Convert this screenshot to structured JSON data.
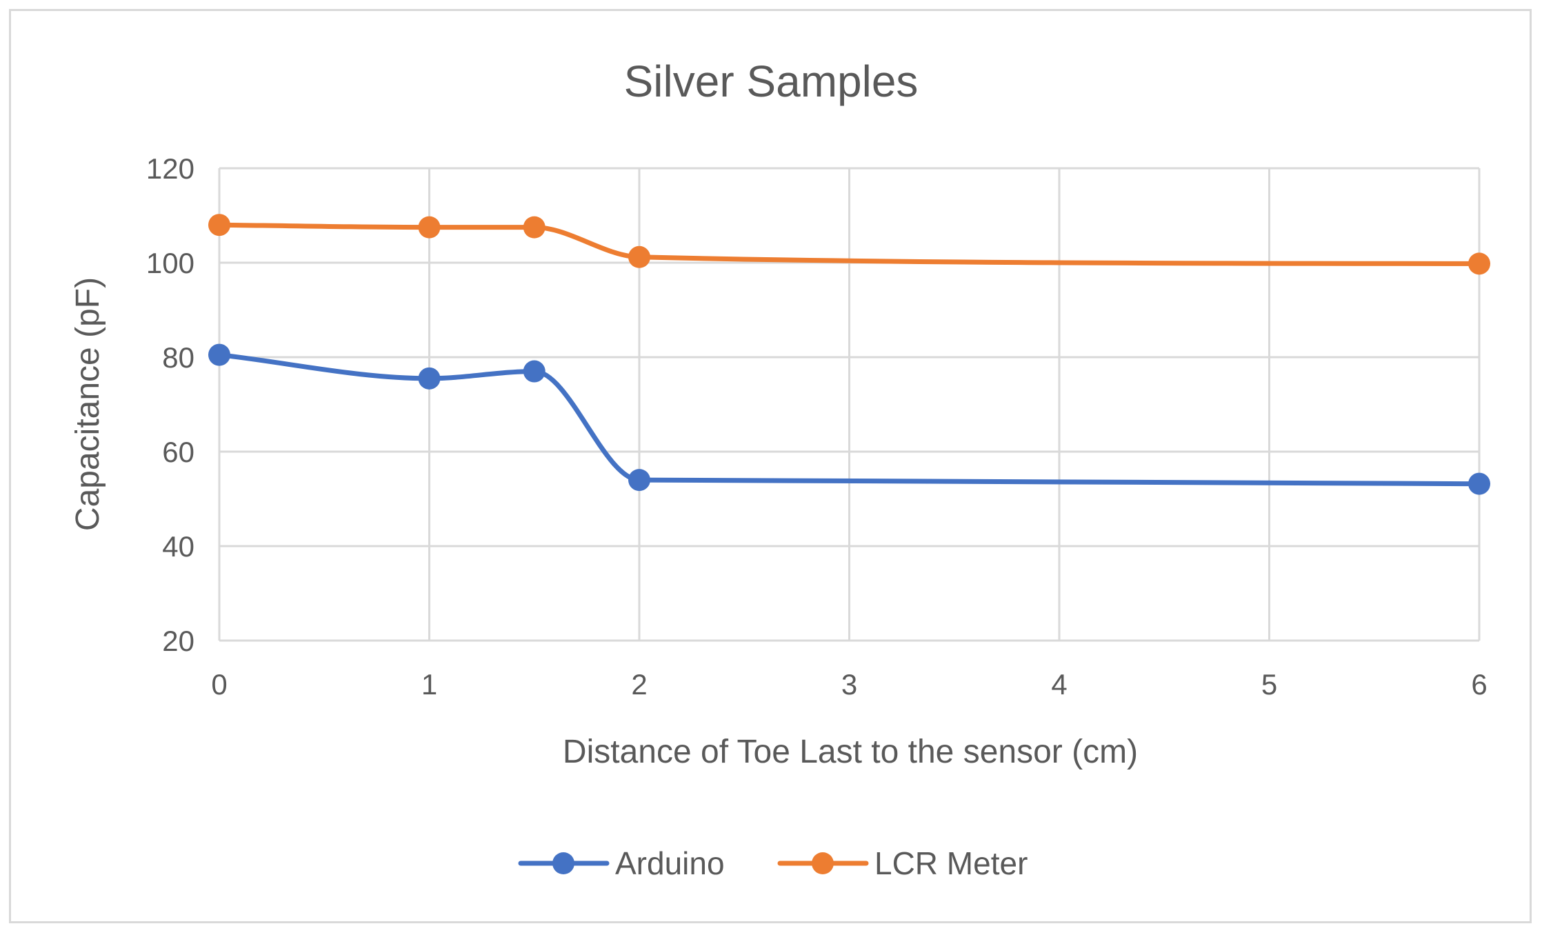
{
  "chart_data": {
    "type": "line",
    "title": "Silver Samples",
    "xlabel": "Distance of Toe Last to the sensor (cm)",
    "ylabel": "Capacitance (pF)",
    "xlim": [
      0,
      6
    ],
    "ylim": [
      20,
      120
    ],
    "x_ticks": [
      "0",
      "1",
      "2",
      "3",
      "4",
      "5",
      "6"
    ],
    "y_ticks": [
      "20",
      "40",
      "60",
      "80",
      "100",
      "120"
    ],
    "grid": true,
    "smooth": true,
    "legend_position": "bottom",
    "x": [
      0,
      1,
      1.5,
      2,
      6
    ],
    "series": [
      {
        "name": "Arduino",
        "color": "#4472C4",
        "values": [
          80.5,
          75.5,
          77,
          54,
          53.2
        ]
      },
      {
        "name": "LCR Meter",
        "color": "#ED7D31",
        "values": [
          108,
          107.5,
          107.5,
          101.2,
          99.8
        ]
      }
    ]
  }
}
